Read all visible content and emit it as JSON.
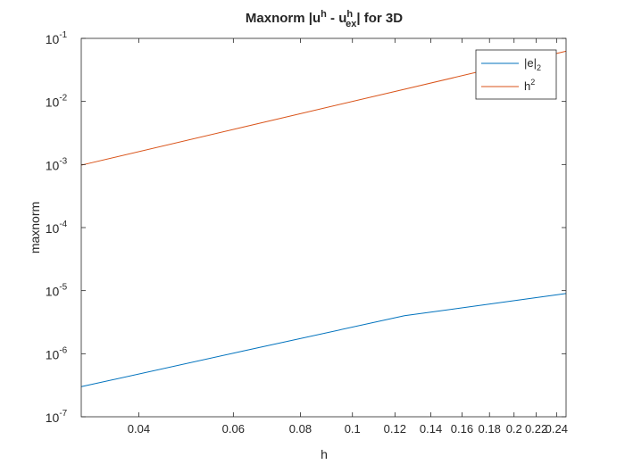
{
  "chart_data": {
    "type": "line",
    "title": {
      "prefix": "Maxnorm |u",
      "sup1": "h",
      "middle": " - u",
      "sub": "ex",
      "sup2": "h",
      "suffix": "| for 3D"
    },
    "xlabel": "h",
    "ylabel": "maxnorm",
    "x_scale": "log",
    "y_scale": "log",
    "xlim": [
      0.03125,
      0.25
    ],
    "ylim": [
      1e-07,
      0.1
    ],
    "x_ticks": [
      0.04,
      0.06,
      0.08,
      0.1,
      0.12,
      0.14,
      0.16,
      0.18,
      0.2,
      0.22,
      0.24
    ],
    "x_tick_labels": [
      "0.04",
      "0.06",
      "0.08",
      "0.1",
      "0.12",
      "0.14",
      "0.16",
      "0.18",
      "0.2",
      "0.22",
      "0.24"
    ],
    "y_ticks": [
      1e-07,
      1e-06,
      1e-05,
      0.0001,
      0.001,
      0.01,
      0.1
    ],
    "y_tick_labels": [
      {
        "base": "10",
        "exp": "-7"
      },
      {
        "base": "10",
        "exp": "-6"
      },
      {
        "base": "10",
        "exp": "-5"
      },
      {
        "base": "10",
        "exp": "-4"
      },
      {
        "base": "10",
        "exp": "-3"
      },
      {
        "base": "10",
        "exp": "-2"
      },
      {
        "base": "10",
        "exp": "-1"
      }
    ],
    "grid": false,
    "legend_position": "top-right",
    "series": [
      {
        "legend": {
          "main": "|e|",
          "sub": "2"
        },
        "color": "#0072bd",
        "x": [
          0.03125,
          0.0625,
          0.125,
          0.25
        ],
        "y": [
          3e-07,
          1.1e-06,
          4e-06,
          9e-06
        ]
      },
      {
        "legend": {
          "main": "h",
          "sup": "2"
        },
        "color": "#d95319",
        "x": [
          0.03125,
          0.0625,
          0.125,
          0.25
        ],
        "y": [
          0.0009765625,
          0.00390625,
          0.015625,
          0.0625
        ]
      }
    ]
  }
}
